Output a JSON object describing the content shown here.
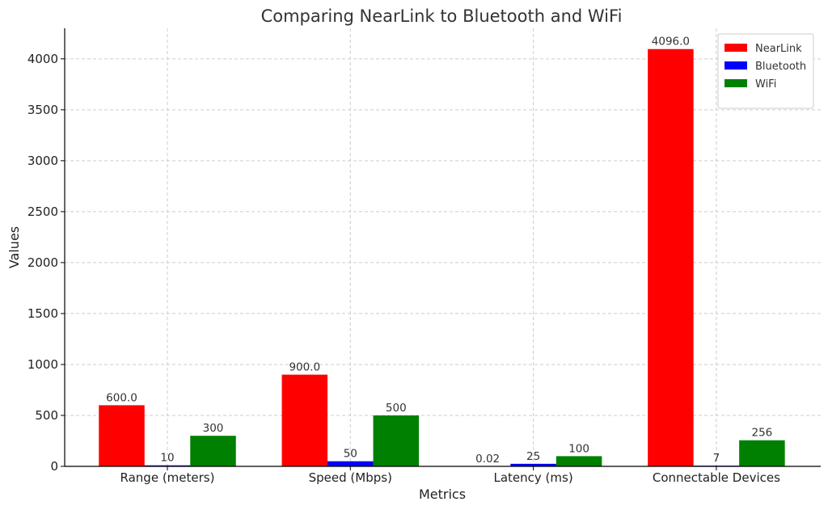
{
  "chart_data": {
    "type": "bar",
    "title": "Comparing NearLink to Bluetooth and WiFi",
    "xlabel": "Metrics",
    "ylabel": "Values",
    "categories": [
      "Range (meters)",
      "Speed (Mbps)",
      "Latency (ms)",
      "Connectable Devices"
    ],
    "series": [
      {
        "name": "NearLink",
        "color": "#ff0000",
        "values": [
          600.0,
          900.0,
          0.02,
          4096.0
        ],
        "labels": [
          "600.0",
          "900.0",
          "0.02",
          "4096.0"
        ]
      },
      {
        "name": "Bluetooth",
        "color": "#0000ff",
        "values": [
          10,
          50,
          25,
          7
        ],
        "labels": [
          "10",
          "50",
          "25",
          "7"
        ]
      },
      {
        "name": "WiFi",
        "color": "#008000",
        "values": [
          300,
          500,
          100,
          256
        ],
        "labels": [
          "300",
          "500",
          "100",
          "256"
        ]
      }
    ],
    "ylim": [
      0,
      4300
    ],
    "yticks": [
      0,
      500,
      1000,
      1500,
      2000,
      2500,
      3000,
      3500,
      4000
    ],
    "grid": true,
    "legend_position": "top-right"
  }
}
